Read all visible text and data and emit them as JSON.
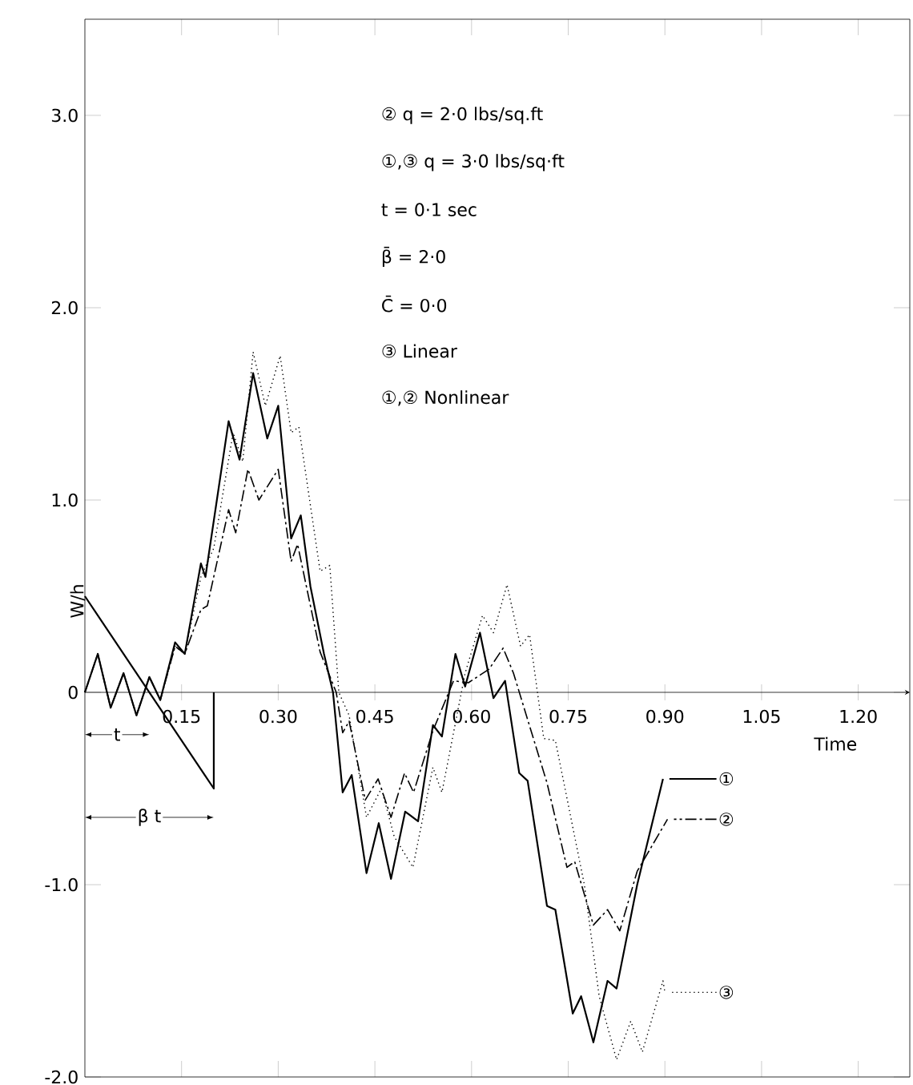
{
  "chart_data": {
    "type": "line",
    "xlabel": "Time",
    "ylabel": "W/h",
    "xlim": [
      0,
      1.28
    ],
    "ylim": [
      -2,
      3.5
    ],
    "xticks": [
      0.15,
      {
        "value": 0.3,
        "label": "0.30"
      },
      0.45,
      {
        "value": 0.6,
        "label": "0.60"
      },
      0.75,
      {
        "value": 0.9,
        "label": "0.90"
      },
      1.05,
      {
        "value": 1.2,
        "label": "1.20"
      }
    ],
    "yticks": [
      {
        "value": -2,
        "label": "-2.0"
      },
      {
        "value": -1,
        "label": "-1.0"
      },
      0,
      {
        "value": 1,
        "label": "1.0"
      },
      {
        "value": 2,
        "label": "2.0"
      },
      {
        "value": 3,
        "label": "3.0"
      }
    ],
    "grid": false,
    "legend": "right",
    "marker": "none",
    "annotations": [
      "② q = 2·0 lbs/sq.ft",
      "①,③ q = 3·0 lbs/sq·ft",
      "t = 0·1 sec",
      "β̄ = 2·0",
      "C̄ = 0·0",
      "③ Linear",
      "①,② Nonlinear",
      {
        "text": "t",
        "x": 0.05,
        "y": -0.22
      },
      {
        "text": "β t",
        "x": 0.1,
        "y": -0.65
      }
    ],
    "series": [
      {
        "name": "①",
        "color": "#000000",
        "line_style": "solid",
        "x": [
          0,
          0.02,
          0.04,
          0.06,
          0.08,
          0.1,
          0.117,
          0.14,
          0.155,
          0.18,
          0.187,
          0.223,
          0.24,
          0.261,
          0.283,
          0.3,
          0.32,
          0.335,
          0.35,
          0.371,
          0.385,
          0.4,
          0.414,
          0.437,
          0.456,
          0.475,
          0.497,
          0.517,
          0.54,
          0.554,
          0.575,
          0.59,
          0.613,
          0.634,
          0.652,
          0.674,
          0.687,
          0.717,
          0.73,
          0.757,
          0.77,
          0.789,
          0.811,
          0.825,
          0.857,
          0.897
        ],
        "values": [
          0,
          0.2,
          -0.08,
          0.1,
          -0.12,
          0.08,
          -0.04,
          0.26,
          0.2,
          0.67,
          0.6,
          1.41,
          1.21,
          1.66,
          1.32,
          1.49,
          0.8,
          0.92,
          0.55,
          0.2,
          0,
          -0.52,
          -0.43,
          -0.94,
          -0.68,
          -0.97,
          -0.62,
          -0.67,
          -0.17,
          -0.23,
          0.2,
          0.03,
          0.31,
          -0.03,
          0.06,
          -0.42,
          -0.46,
          -1.11,
          -1.13,
          -1.67,
          -1.58,
          -1.82,
          -1.5,
          -1.54,
          -1.0,
          -0.45
        ]
      },
      {
        "name": "②",
        "color": "#000000",
        "line_style": "dashed",
        "x": [
          0,
          0.02,
          0.04,
          0.06,
          0.08,
          0.1,
          0.117,
          0.14,
          0.155,
          0.18,
          0.19,
          0.223,
          0.234,
          0.253,
          0.27,
          0.3,
          0.32,
          0.33,
          0.365,
          0.39,
          0.4,
          0.41,
          0.435,
          0.455,
          0.475,
          0.496,
          0.51,
          0.54,
          0.572,
          0.595,
          0.627,
          0.649,
          0.665,
          0.685,
          0.717,
          0.748,
          0.76,
          0.789,
          0.811,
          0.83,
          0.857,
          0.904
        ],
        "values": [
          0,
          0.2,
          -0.08,
          0.1,
          -0.12,
          0.08,
          -0.04,
          0.24,
          0.2,
          0.43,
          0.45,
          0.95,
          0.83,
          1.16,
          1.0,
          1.16,
          0.68,
          0.77,
          0.21,
          0,
          -0.21,
          -0.15,
          -0.56,
          -0.45,
          -0.65,
          -0.42,
          -0.52,
          -0.2,
          0.06,
          0.05,
          0.12,
          0.23,
          0.1,
          -0.12,
          -0.47,
          -0.91,
          -0.88,
          -1.21,
          -1.13,
          -1.24,
          -0.93,
          -0.66
        ]
      },
      {
        "name": "③",
        "color": "#000000",
        "line_style": "dotted",
        "x": [
          0,
          0.02,
          0.04,
          0.06,
          0.08,
          0.1,
          0.117,
          0.14,
          0.155,
          0.18,
          0.2,
          0.23,
          0.245,
          0.261,
          0.28,
          0.303,
          0.32,
          0.332,
          0.365,
          0.38,
          0.394,
          0.41,
          0.437,
          0.46,
          0.48,
          0.509,
          0.54,
          0.554,
          0.59,
          0.617,
          0.634,
          0.655,
          0.676,
          0.69,
          0.712,
          0.73,
          0.775,
          0.798,
          0.825,
          0.847,
          0.865,
          0.897,
          0.9
        ],
        "values": [
          0,
          0.2,
          -0.08,
          0.1,
          -0.12,
          0.08,
          -0.04,
          0.24,
          0.2,
          0.6,
          0.75,
          1.35,
          1.2,
          1.77,
          1.49,
          1.75,
          1.35,
          1.38,
          0.63,
          0.66,
          0,
          -0.12,
          -0.65,
          -0.5,
          -0.75,
          -0.91,
          -0.39,
          -0.52,
          0.1,
          0.4,
          0.31,
          0.56,
          0.24,
          0.3,
          -0.24,
          -0.25,
          -1.0,
          -1.58,
          -1.91,
          -1.71,
          -1.87,
          -1.5,
          -1.56
        ]
      },
      {
        "color": "#000000",
        "line_style": "solid",
        "x": [
          0,
          0.2,
          0.2
        ],
        "values": [
          0.5,
          -0.5,
          0
        ]
      }
    ]
  }
}
